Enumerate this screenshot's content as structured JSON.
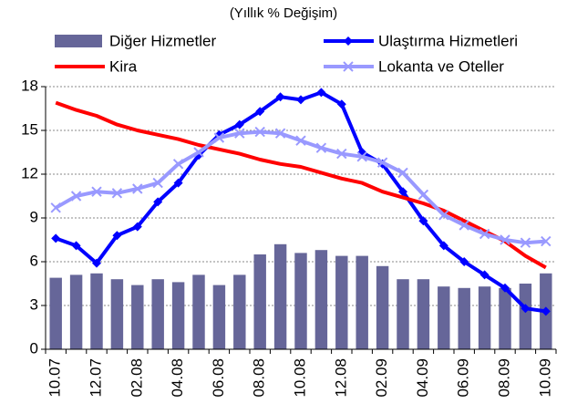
{
  "chart_data": {
    "type": "bar-line",
    "title": "(Yıllık % Değişim)",
    "categories": [
      "10.07",
      null,
      "12.07",
      null,
      "02.08",
      null,
      "04.08",
      null,
      "06.08",
      null,
      "08.08",
      null,
      "10.08",
      null,
      "12.08",
      null,
      "02.09",
      null,
      "04.09",
      null,
      "06.09",
      null,
      "08.09",
      null,
      "10.09"
    ],
    "series": [
      {
        "name": "Diğer Hizmetler",
        "type": "bar",
        "color": "#666699",
        "values": [
          4.9,
          5.1,
          5.2,
          4.8,
          4.4,
          4.8,
          4.6,
          5.1,
          4.4,
          5.1,
          6.5,
          7.2,
          6.6,
          6.8,
          6.4,
          6.4,
          5.7,
          4.8,
          4.8,
          4.3,
          4.2,
          4.3,
          4.2,
          4.5,
          5.2
        ]
      },
      {
        "name": "Ulaştırma Hizmetleri",
        "type": "line",
        "marker": "diamond",
        "color": "#0000ff",
        "values": [
          7.6,
          7.1,
          5.9,
          7.8,
          8.4,
          10.1,
          11.4,
          13.3,
          14.7,
          15.4,
          16.3,
          17.3,
          17.1,
          17.6,
          16.8,
          13.5,
          12.7,
          10.8,
          8.8,
          7.1,
          6.0,
          5.1,
          4.2,
          2.8,
          2.6
        ]
      },
      {
        "name": "Kira",
        "type": "line",
        "marker": "none",
        "color": "#ff0000",
        "values": [
          16.9,
          16.4,
          16.0,
          15.4,
          15.0,
          14.7,
          14.4,
          14.0,
          13.7,
          13.4,
          13.0,
          12.7,
          12.5,
          12.1,
          11.7,
          11.4,
          10.8,
          10.4,
          10.0,
          9.5,
          8.8,
          8.1,
          7.4,
          6.4,
          5.6
        ]
      },
      {
        "name": "Lokanta ve Oteller",
        "type": "line",
        "marker": "x",
        "color": "#9999ff",
        "values": [
          9.7,
          10.5,
          10.8,
          10.7,
          11.0,
          11.4,
          12.7,
          13.5,
          14.5,
          14.8,
          14.9,
          14.8,
          14.3,
          13.8,
          13.4,
          13.2,
          12.8,
          12.1,
          10.6,
          9.2,
          8.5,
          7.9,
          7.5,
          7.3,
          7.4
        ]
      }
    ],
    "ylim": [
      0,
      18
    ],
    "yticks": [
      0,
      3,
      6,
      9,
      12,
      15,
      18
    ],
    "grid": true,
    "legend": "top"
  }
}
